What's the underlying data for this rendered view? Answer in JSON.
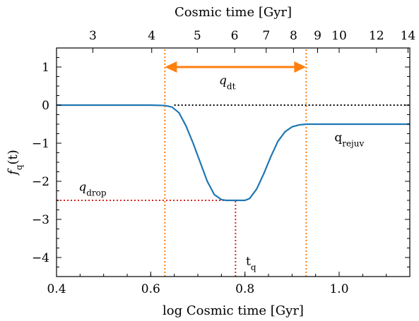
{
  "chart_data": {
    "type": "line",
    "xlabel": "log Cosmic time [Gyr]",
    "ylabel_main": "f",
    "ylabel_sub": "q",
    "ylabel_arg": "(t)",
    "top_xlabel": "Cosmic time [Gyr]",
    "xlim": [
      0.4,
      1.15
    ],
    "ylim": [
      -4.5,
      1.5
    ],
    "x_ticks": [
      {
        "value": 0.4,
        "label": "0.4"
      },
      {
        "value": 0.6,
        "label": "0.6"
      },
      {
        "value": 0.8,
        "label": "0.8"
      },
      {
        "value": 1.0,
        "label": "1.0"
      }
    ],
    "y_ticks": [
      {
        "value": 1,
        "label": "1"
      },
      {
        "value": 0,
        "label": "0"
      },
      {
        "value": -1,
        "label": "−1"
      },
      {
        "value": -2,
        "label": "−2"
      },
      {
        "value": -3,
        "label": "−3"
      },
      {
        "value": -4,
        "label": "−4"
      }
    ],
    "top_ticks": [
      {
        "value": 3,
        "label": "3"
      },
      {
        "value": 4,
        "label": "4"
      },
      {
        "value": 5,
        "label": "5"
      },
      {
        "value": 6,
        "label": "6"
      },
      {
        "value": 7,
        "label": "7"
      },
      {
        "value": 8,
        "label": "8"
      },
      {
        "value": 9,
        "label": "9"
      },
      {
        "value": 10,
        "label": "10"
      },
      {
        "value": 12,
        "label": "12"
      },
      {
        "value": 14,
        "label": "14"
      }
    ],
    "series": [
      {
        "color": "#1f77b4",
        "x": [
          0.4,
          0.5,
          0.6,
          0.63,
          0.645,
          0.66,
          0.675,
          0.69,
          0.705,
          0.72,
          0.735,
          0.75,
          0.76,
          0.78,
          0.8,
          0.81,
          0.825,
          0.84,
          0.855,
          0.87,
          0.885,
          0.9,
          0.915,
          0.93,
          1.0,
          1.15
        ],
        "y": [
          0.0,
          0.0,
          0.0,
          -0.01,
          -0.05,
          -0.2,
          -0.55,
          -1.0,
          -1.5,
          -2.0,
          -2.35,
          -2.48,
          -2.5,
          -2.5,
          -2.5,
          -2.45,
          -2.2,
          -1.8,
          -1.35,
          -0.95,
          -0.7,
          -0.57,
          -0.52,
          -0.5,
          -0.5,
          -0.5
        ]
      }
    ],
    "reference_lines": [
      {
        "kind": "hline",
        "y": 0,
        "x_from": 0.65,
        "x_to": 1.15,
        "color": "#000000",
        "style": "dotted"
      },
      {
        "kind": "vline",
        "x": 0.63,
        "y_from": -4.5,
        "y_to": 1.5,
        "color": "#ff7f0e",
        "style": "dotted"
      },
      {
        "kind": "vline",
        "x": 0.93,
        "y_from": -4.5,
        "y_to": 1.5,
        "color": "#ff7f0e",
        "style": "dotted"
      },
      {
        "kind": "hline",
        "y": -2.5,
        "x_from": 0.4,
        "x_to": 0.78,
        "color": "#d62728",
        "style": "dotted"
      },
      {
        "kind": "vline",
        "x": 0.78,
        "y_from": -4.5,
        "y_to": -2.5,
        "color": "#d62728",
        "style": "dotted"
      }
    ],
    "arrow": {
      "x_from": 0.63,
      "x_to": 0.93,
      "y": 1.0,
      "color": "#ff7f0e"
    },
    "annotations": [
      {
        "main": "q",
        "sub": "dt",
        "x": 0.745,
        "y": 0.55,
        "anchor": "start"
      },
      {
        "main": "q",
        "sub": "drop",
        "x": 0.447,
        "y": -2.25,
        "anchor": "start"
      },
      {
        "main": "q",
        "sub": "rejuv",
        "x": 0.99,
        "y": -0.95,
        "anchor": "start"
      },
      {
        "main": "t",
        "sub": "q",
        "x": 0.802,
        "y": -4.2,
        "anchor": "start"
      }
    ],
    "grid": false,
    "legend": "none"
  }
}
